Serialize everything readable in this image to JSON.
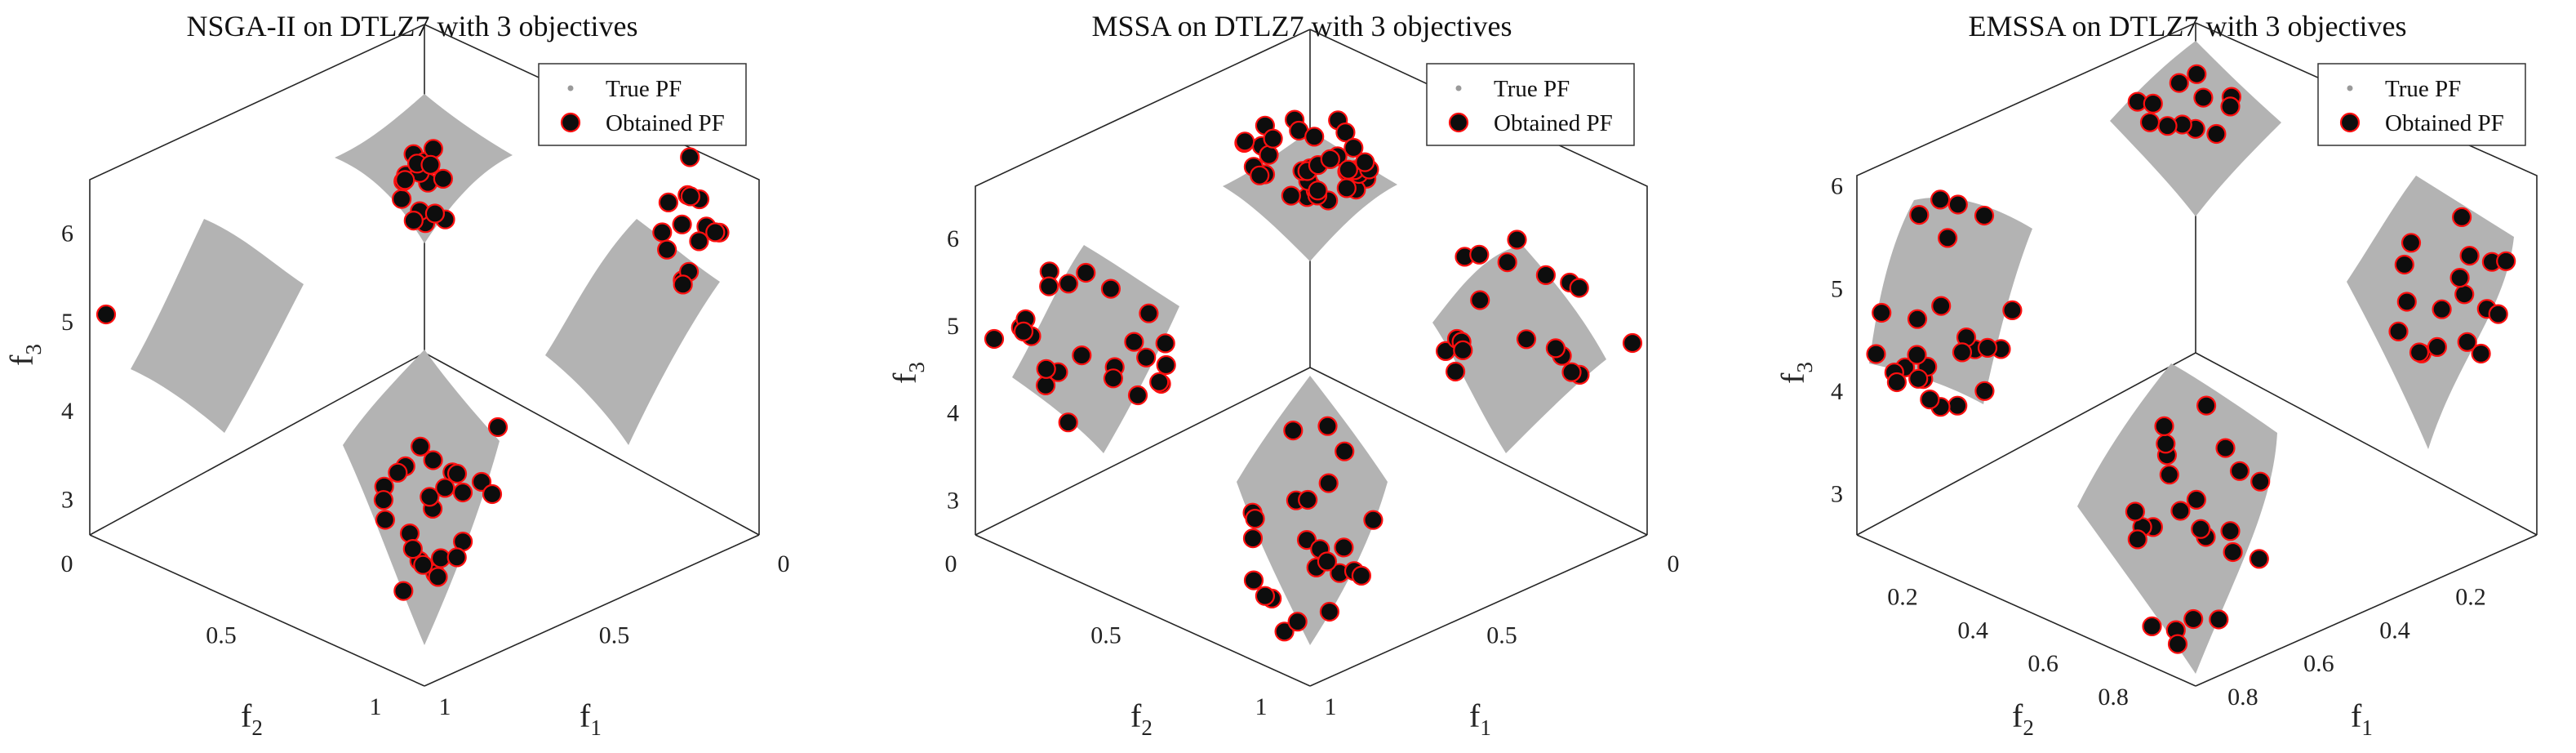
{
  "chart_data": [
    {
      "type": "scatter",
      "projection": "3d",
      "title": "NSGA-II on DTLZ7 with 3 objectives",
      "xlabel": "f1",
      "ylabel": "f2",
      "zlabel": "f3",
      "xlabel_main": "f",
      "xlabel_sub": "1",
      "ylabel_main": "f",
      "ylabel_sub": "2",
      "zlabel_main": "f",
      "zlabel_sub": "3",
      "xlim": [
        0,
        1
      ],
      "ylim": [
        0,
        1
      ],
      "zlim": [
        2.6,
        6.6
      ],
      "xticks": [
        {
          "v": 0,
          "label": "0"
        },
        {
          "v": 0.5,
          "label": "0.5"
        },
        {
          "v": 1,
          "label": "1"
        }
      ],
      "yticks": [
        {
          "v": 0,
          "label": "0"
        },
        {
          "v": 0.5,
          "label": "0.5"
        },
        {
          "v": 1,
          "label": "1"
        }
      ],
      "zticks": [
        {
          "v": 3,
          "label": "3"
        },
        {
          "v": 4,
          "label": "4"
        },
        {
          "v": 5,
          "label": "5"
        },
        {
          "v": 6,
          "label": "6"
        }
      ],
      "legend": {
        "position": "top-right",
        "entries": [
          "True PF",
          "Obtained PF"
        ]
      },
      "seed": 11,
      "patch_counts": [
        8,
        10,
        15,
        22
      ]
    },
    {
      "type": "scatter",
      "projection": "3d",
      "title": "MSSA on DTLZ7 with 3 objectives",
      "xlabel": "f1",
      "ylabel": "f2",
      "zlabel": "f3",
      "xlabel_main": "f",
      "xlabel_sub": "1",
      "ylabel_main": "f",
      "ylabel_sub": "2",
      "zlabel_main": "f",
      "zlabel_sub": "3",
      "xlim": [
        0,
        1
      ],
      "ylim": [
        0,
        1
      ],
      "zlim": [
        2.6,
        6.6
      ],
      "xticks": [
        {
          "v": 0,
          "label": "0"
        },
        {
          "v": 0.5,
          "label": "0.5"
        },
        {
          "v": 1,
          "label": "1"
        }
      ],
      "yticks": [
        {
          "v": 0,
          "label": "0"
        },
        {
          "v": 0.5,
          "label": "0.5"
        },
        {
          "v": 1,
          "label": "1"
        }
      ],
      "zticks": [
        {
          "v": 3,
          "label": "3"
        },
        {
          "v": 4,
          "label": "4"
        },
        {
          "v": 5,
          "label": "5"
        },
        {
          "v": 6,
          "label": "6"
        }
      ],
      "legend": {
        "position": "top-right",
        "entries": [
          "True PF",
          "Obtained PF"
        ]
      },
      "seed": 23,
      "patch_counts": [
        38,
        24,
        18,
        24
      ]
    },
    {
      "type": "scatter",
      "projection": "3d",
      "title": "EMSSA on DTLZ7 with 3 objectives",
      "xlabel": "f1",
      "ylabel": "f2",
      "zlabel": "f3",
      "xlabel_main": "f",
      "xlabel_sub": "1",
      "ylabel_main": "f",
      "ylabel_sub": "2",
      "zlabel_main": "f",
      "zlabel_sub": "3",
      "xlim": [
        0,
        0.86
      ],
      "ylim": [
        0,
        0.86
      ],
      "zlim": [
        2.6,
        6.1
      ],
      "xticks": [
        {
          "v": 0.2,
          "label": "0.2"
        },
        {
          "v": 0.4,
          "label": "0.4"
        },
        {
          "v": 0.6,
          "label": "0.6"
        },
        {
          "v": 0.8,
          "label": "0.8"
        }
      ],
      "yticks": [
        {
          "v": 0.2,
          "label": "0.2"
        },
        {
          "v": 0.4,
          "label": "0.4"
        },
        {
          "v": 0.6,
          "label": "0.6"
        },
        {
          "v": 0.8,
          "label": "0.8"
        }
      ],
      "zticks": [
        {
          "v": 3,
          "label": "3"
        },
        {
          "v": 4,
          "label": "4"
        },
        {
          "v": 5,
          "label": "5"
        },
        {
          "v": 6,
          "label": "6"
        }
      ],
      "legend": {
        "position": "top-right",
        "entries": [
          "True PF",
          "Obtained PF"
        ]
      },
      "seed": 37,
      "patch_counts": [
        12,
        26,
        18,
        24
      ]
    }
  ]
}
